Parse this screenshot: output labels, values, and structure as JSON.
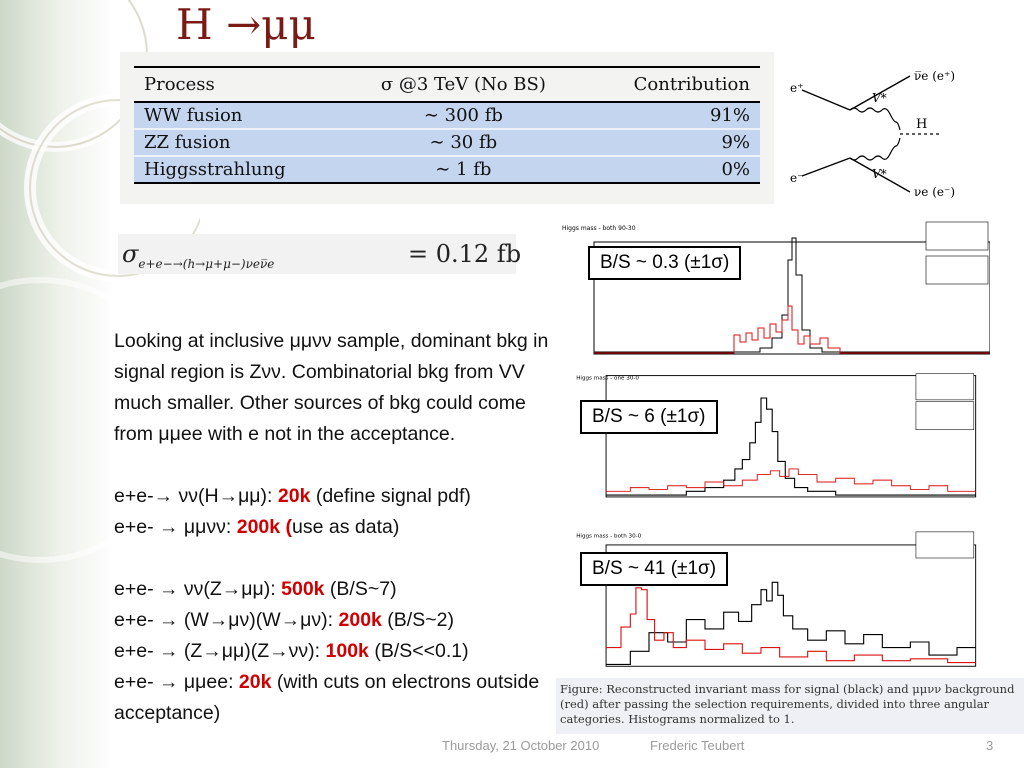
{
  "title": "H →μμ",
  "table": {
    "headers": [
      "Process",
      "σ @3 TeV (No BS)",
      "Contribution"
    ],
    "rows": [
      {
        "process": "WW fusion",
        "sigma": "∼ 300 fb",
        "contribution": "91%"
      },
      {
        "process": "ZZ fusion",
        "sigma": "∼ 30 fb",
        "contribution": "9%"
      },
      {
        "process": "Higgsstrahlung",
        "sigma": "∼ 1 fb",
        "contribution": "0%"
      }
    ]
  },
  "diagram": {
    "labels": {
      "e_plus": "e⁺",
      "e_minus": "e⁻",
      "nu_bar": "ν̅e (e⁺)",
      "nu": "νe (e⁻)",
      "h": "H",
      "v_top": "V*",
      "v_bot": "V*"
    }
  },
  "formula": {
    "sigma": "σ",
    "subscript": "e+e−→(h→μ+μ−)νeν̅e",
    "value": "= 0.12 fb"
  },
  "body": {
    "intro": "Looking at inclusive μμνν sample, dominant bkg in signal region is Zνν.  Combinatorial bkg from VV much smaller. Other sources of bkg could come from μμee with e not in the acceptance.",
    "lines1": [
      {
        "pre": "e+e-→ νν(H→μμ): ",
        "num": "20k",
        "post": " (define signal pdf)"
      },
      {
        "pre": "e+e- → μμνν: ",
        "num": "200k (",
        "post": "use as data)"
      }
    ],
    "lines2": [
      {
        "pre": "e+e- → νν(Z→μμ):  ",
        "num": "500k",
        "post": " (B/S~7)"
      },
      {
        "pre": "e+e- → (W→μν)(W→μν):  ",
        "num": "200k",
        "post": " (B/S~2)"
      },
      {
        "pre": "e+e- → (Z→μμ)(Z→νν):  ",
        "num": "100k",
        "post": " (B/S<<0.1)"
      },
      {
        "pre": "e+e- → μμee:  ",
        "num": "20k",
        "post": " (with cuts on electrons outside acceptance)"
      }
    ]
  },
  "plots": [
    {
      "title": "Higgs mass - both 90-30",
      "bs": "B/S ~ 0.3 (±1σ)"
    },
    {
      "title": "Higgs mass - one 30-0",
      "bs": "B/S ~ 6 (±1σ)"
    },
    {
      "title": "Higgs mass - both 30-0",
      "bs": "B/S ~ 41 (±1σ)"
    }
  ],
  "caption": "Figure: Reconstructed invariant mass for signal (black) and μμνν background (red) after passing the selection requirements, divided into three angular categories. Histograms normalized to 1.",
  "footer": {
    "date": "Thursday, 21 October 2010",
    "author": "Frederic Teubert",
    "page": "3"
  },
  "colors": {
    "title": "#7a1a14",
    "highlight": "#d00000",
    "table_row": "#c4d6ef",
    "signal": "#000000",
    "background": "#dd1111"
  }
}
